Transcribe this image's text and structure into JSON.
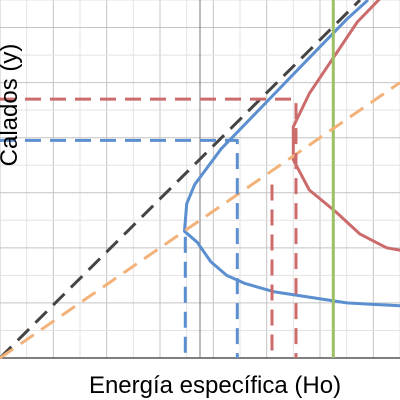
{
  "chart_data": {
    "type": "line",
    "xlabel": "Energía específica (Ho)",
    "ylabel": "Calados (y)",
    "grid": true,
    "xlim": [
      -2,
      13
    ],
    "ylim": [
      0,
      13
    ],
    "axes": {
      "vertical_axis_at_x": 5.5
    },
    "series": [
      {
        "style": "solid",
        "color": "#5b8fd0",
        "points": [
          [
            14.8,
            1.8
          ],
          [
            11.0,
            2.0
          ],
          [
            8.3,
            2.4
          ],
          [
            7.2,
            2.7
          ],
          [
            6.5,
            3.0
          ],
          [
            5.9,
            3.5
          ],
          [
            5.4,
            4.2
          ],
          [
            4.92,
            4.6
          ],
          [
            5.0,
            5.6
          ],
          [
            5.3,
            6.3
          ],
          [
            6.3,
            7.6
          ],
          [
            7.5,
            8.8
          ],
          [
            9.3,
            10.6
          ],
          [
            11.0,
            12.3
          ],
          [
            11.8,
            13.0
          ]
        ]
      },
      {
        "style": "solid",
        "color": "#cc6b6b",
        "points": [
          [
            14.8,
            3.6
          ],
          [
            12.5,
            4.0
          ],
          [
            11.5,
            4.5
          ],
          [
            10.6,
            5.3
          ],
          [
            9.6,
            6.1
          ],
          [
            9.0,
            7.2
          ],
          [
            9.0,
            8.4
          ],
          [
            9.6,
            9.6
          ],
          [
            10.5,
            10.9
          ],
          [
            11.4,
            12.2
          ],
          [
            12.4,
            13.2
          ]
        ]
      },
      {
        "style": "solid",
        "color": "#9cc062",
        "points": [
          [
            10.5,
            0
          ],
          [
            10.5,
            13
          ]
        ]
      },
      {
        "style": "dashed",
        "color": "#444444",
        "points": [
          [
            -2,
            0
          ],
          [
            11.5,
            13
          ]
        ]
      },
      {
        "style": "dashed",
        "color": "#f2b27a",
        "points": [
          [
            -2,
            0
          ],
          [
            13,
            10
          ]
        ]
      },
      {
        "style": "dashed",
        "color": "#5b8fd0",
        "points": [
          [
            -2,
            7.9
          ],
          [
            6.9,
            7.9
          ],
          [
            6.9,
            0
          ]
        ]
      },
      {
        "style": "dashed",
        "color": "#5b8fd0",
        "points": [
          [
            4.95,
            4.4
          ],
          [
            4.95,
            0
          ]
        ]
      },
      {
        "style": "dashed",
        "color": "#cc6b6b",
        "points": [
          [
            -2,
            9.4
          ],
          [
            9.1,
            9.4
          ],
          [
            9.1,
            0
          ]
        ]
      },
      {
        "style": "dashed",
        "color": "#cc6b6b",
        "points": [
          [
            8.2,
            6.3
          ],
          [
            8.2,
            0
          ]
        ]
      }
    ]
  }
}
